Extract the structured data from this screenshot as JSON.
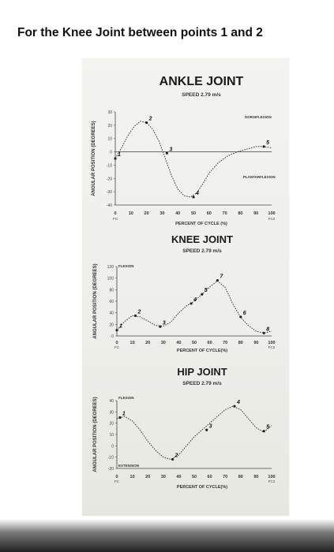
{
  "question": "For the Knee Joint between points 1 and 2",
  "chart_data": [
    {
      "type": "line",
      "title": "ANKLE JOINT",
      "subtitle": "SPEED 2.79 m/s",
      "xlabel": "PERCENT OF CYCLE (%)",
      "ylabel": "ANGULAR POSITION (DEGREES)",
      "xlim": [
        0,
        100
      ],
      "ylim": [
        -40,
        30
      ],
      "xticks": [
        0,
        10,
        20,
        30,
        40,
        50,
        60,
        70,
        80,
        90,
        100
      ],
      "yticks": [
        30,
        20,
        10,
        0,
        -10,
        -20,
        -30,
        -40
      ],
      "xtick_labels": [
        "0",
        "10",
        "20",
        "30",
        "40",
        "50",
        "60",
        "70",
        "80",
        "90",
        "100"
      ],
      "ytick_labels": [
        "30",
        "20",
        "10",
        "0",
        "-10",
        "-20",
        "-30",
        "-40"
      ],
      "start_label": "FC",
      "end_label": "FC2",
      "annotations": [
        "DORSIFLEXION",
        "PLANTARFLEXION"
      ],
      "x": [
        0,
        4,
        8,
        12,
        16,
        20,
        24,
        28,
        32,
        36,
        40,
        44,
        48,
        52,
        56,
        60,
        66,
        72,
        78,
        84,
        90,
        95,
        100
      ],
      "y": [
        -5,
        3,
        12,
        19,
        23,
        22,
        17,
        8,
        -5,
        -18,
        -28,
        -33,
        -34,
        -31,
        -24,
        -16,
        -8,
        -3,
        0,
        2,
        4,
        4,
        3
      ],
      "points": [
        {
          "label": "1",
          "x": 0,
          "y": -5
        },
        {
          "label": "2",
          "x": 20,
          "y": 22
        },
        {
          "label": "3",
          "x": 33,
          "y": -1
        },
        {
          "label": "4",
          "x": 50,
          "y": -34
        },
        {
          "label": "5",
          "x": 95,
          "y": 4
        }
      ]
    },
    {
      "type": "line",
      "title": "KNEE JOINT",
      "subtitle": "SPEED 2.79 m/s",
      "xlabel": "PERCENT OF CYCLE(%)",
      "ylabel": "ANGULAR POSITION (DEGREES)",
      "xlim": [
        0,
        100
      ],
      "ylim": [
        0,
        120
      ],
      "xticks": [
        0,
        10,
        20,
        30,
        40,
        50,
        60,
        70,
        80,
        90,
        100
      ],
      "yticks": [
        120,
        100,
        80,
        60,
        40,
        20,
        0
      ],
      "xtick_labels": [
        "0",
        "10",
        "20",
        "30",
        "40",
        "50",
        "60",
        "70",
        "80",
        "90",
        "100"
      ],
      "ytick_labels": [
        "120",
        "100",
        "80",
        "60",
        "40",
        "20",
        "0"
      ],
      "start_label": "FC",
      "end_label": "FC2",
      "annotations": [
        "FLEXION"
      ],
      "x": [
        0,
        5,
        10,
        15,
        20,
        25,
        30,
        35,
        40,
        45,
        50,
        55,
        60,
        65,
        70,
        75,
        80,
        85,
        90,
        95,
        100
      ],
      "y": [
        10,
        25,
        35,
        33,
        26,
        18,
        17,
        24,
        40,
        52,
        60,
        72,
        85,
        95,
        84,
        55,
        32,
        18,
        8,
        5,
        8
      ],
      "points": [
        {
          "label": "1",
          "x": 0,
          "y": 10
        },
        {
          "label": "2",
          "x": 12,
          "y": 35
        },
        {
          "label": "3",
          "x": 28,
          "y": 16
        },
        {
          "label": "4",
          "x": 48,
          "y": 56
        },
        {
          "label": "5",
          "x": 55,
          "y": 72
        },
        {
          "label": "6",
          "x": 80,
          "y": 33
        },
        {
          "label": "7",
          "x": 65,
          "y": 96
        },
        {
          "label": "8",
          "x": 95,
          "y": 5
        }
      ]
    },
    {
      "type": "line",
      "title": "HIP JOINT",
      "subtitle": "SPEED 2.79 m/s",
      "xlabel": "PERCENT OF CYCLE(%)",
      "ylabel": "ANGULAR POSITION (DEGREES)",
      "xlim": [
        0,
        100
      ],
      "ylim": [
        -20,
        40
      ],
      "xticks": [
        0,
        10,
        20,
        30,
        40,
        50,
        60,
        70,
        80,
        90,
        100
      ],
      "yticks": [
        40,
        30,
        20,
        10,
        0,
        -10,
        -20
      ],
      "xtick_labels": [
        "0",
        "10",
        "20",
        "30",
        "40",
        "50",
        "60",
        "70",
        "80",
        "90",
        "100"
      ],
      "ytick_labels": [
        "40",
        "30",
        "20",
        "10",
        "0",
        "-10",
        "-20"
      ],
      "start_label": "FC",
      "end_label": "FC2",
      "annotations": [
        "FLEXION",
        "EXTENSION"
      ],
      "x": [
        0,
        5,
        10,
        15,
        20,
        25,
        30,
        35,
        40,
        45,
        50,
        55,
        60,
        65,
        70,
        75,
        80,
        85,
        90,
        95,
        100
      ],
      "y": [
        24,
        26,
        22,
        14,
        4,
        -4,
        -10,
        -12,
        -8,
        0,
        8,
        14,
        20,
        26,
        32,
        35,
        32,
        24,
        16,
        12,
        18
      ],
      "points": [
        {
          "label": "1",
          "x": 2,
          "y": 25
        },
        {
          "label": "2",
          "x": 36,
          "y": -12
        },
        {
          "label": "3",
          "x": 58,
          "y": 14
        },
        {
          "label": "4",
          "x": 76,
          "y": 35
        },
        {
          "label": "5",
          "x": 95,
          "y": 13
        }
      ]
    }
  ]
}
